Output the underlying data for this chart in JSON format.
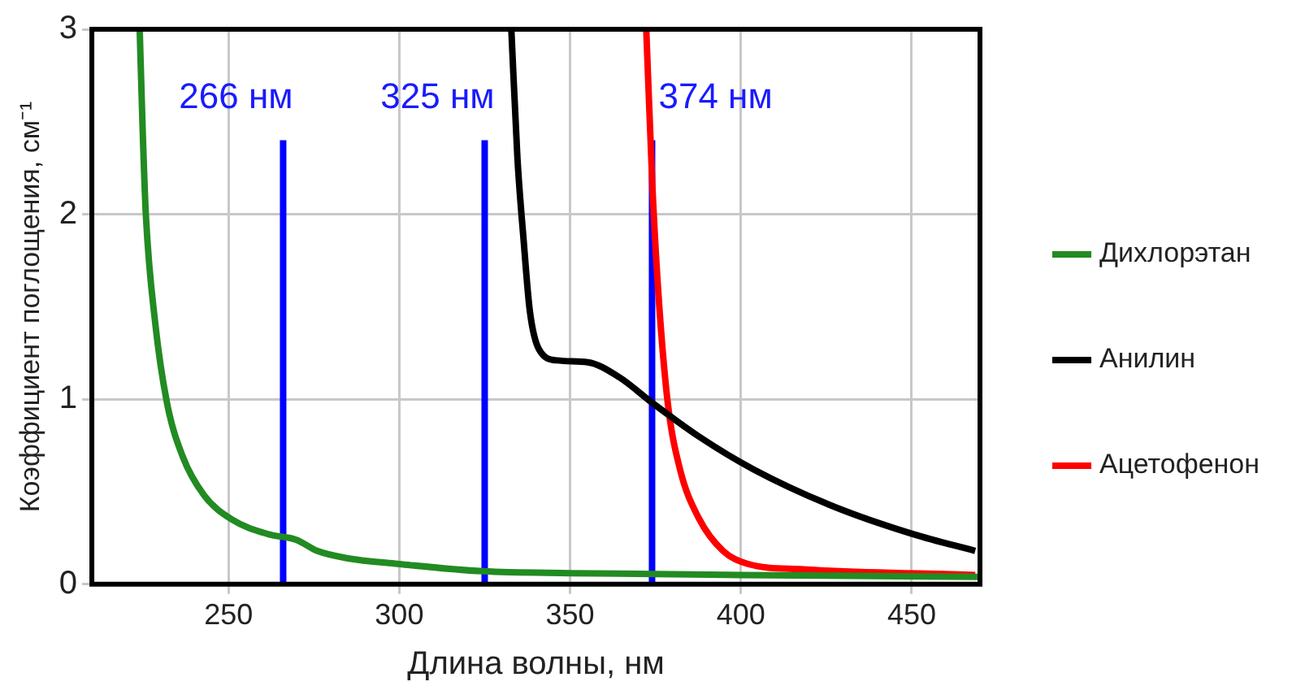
{
  "chart_data": {
    "type": "line",
    "xlabel": "Длина волны, нм",
    "ylabel": "Коэффициент поглощения, см⁻¹",
    "xlim": [
      210,
      470
    ],
    "xticks": [
      250,
      300,
      350,
      400,
      450
    ],
    "ylim": [
      0,
      3
    ],
    "yticks": [
      0,
      1,
      2,
      3
    ],
    "grid": true,
    "legend": "right",
    "marker": "none",
    "line_style": "solid",
    "series": [
      {
        "name": "Дихлорэтан",
        "color": "#228b22",
        "x": [
          224,
          224.9,
          225.8,
          228.5,
          232,
          236.6,
          242.9,
          251,
          261.8,
          269.9,
          276,
          285,
          299.5,
          324.5,
          350,
          400,
          470
        ],
        "values": [
          3.0,
          2.44,
          2.0,
          1.42,
          0.98,
          0.69,
          0.48,
          0.35,
          0.27,
          0.24,
          0.18,
          0.14,
          0.11,
          0.07,
          0.06,
          0.05,
          0.04
        ]
      },
      {
        "name": "Анилин",
        "color": "#000000",
        "x": [
          332.8,
          334.6,
          336.4,
          338.2,
          340.9,
          346.2,
          355.2,
          364.3,
          374.1,
          387.6,
          403.8,
          427.2,
          450.6,
          468.6
        ],
        "values": [
          3.0,
          2.3,
          1.86,
          1.48,
          1.27,
          1.21,
          1.2,
          1.12,
          0.98,
          0.8,
          0.62,
          0.42,
          0.27,
          0.18
        ]
      },
      {
        "name": "Ацетофенон",
        "color": "#ff0000",
        "x": [
          372.3,
          374.1,
          375.9,
          378.6,
          382.2,
          387.6,
          394.8,
          402,
          418.2,
          468.6
        ],
        "values": [
          3.0,
          2.15,
          1.56,
          0.98,
          0.62,
          0.36,
          0.18,
          0.11,
          0.08,
          0.05
        ]
      },
      {
        "color": "#0000ff",
        "x": [
          266,
          266
        ],
        "values": [
          0,
          2.4
        ]
      },
      {
        "color": "#0000ff",
        "x": [
          325,
          325
        ],
        "values": [
          0,
          2.4
        ]
      },
      {
        "color": "#0000ff",
        "x": [
          374,
          374
        ],
        "values": [
          0,
          2.4
        ]
      }
    ],
    "annotations": [
      {
        "text": "266 нм",
        "x": 266,
        "y": 2.4
      },
      {
        "text": "325 нм",
        "x": 325,
        "y": 2.4
      },
      {
        "text": "374 нм",
        "x": 374,
        "y": 2.4
      }
    ]
  }
}
